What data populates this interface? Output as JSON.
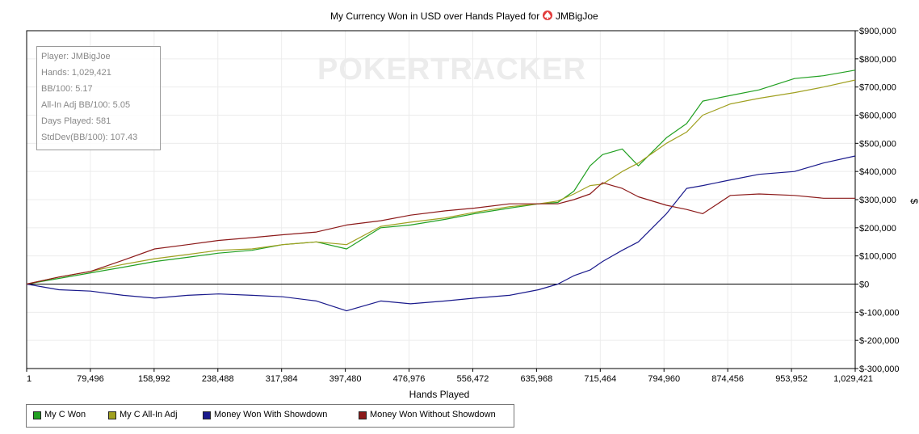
{
  "chart_data": {
    "type": "line",
    "title": "My Currency Won in USD over Hands Played for ",
    "player_name": "JMBigJoe",
    "title_icon": "spade-icon",
    "xlabel": "Hands Played",
    "ylabel": "$",
    "xlim": [
      1,
      1029421
    ],
    "ylim": [
      -300000,
      900000
    ],
    "x_ticks": [
      "1",
      "79,496",
      "158,992",
      "238,488",
      "317,984",
      "397,480",
      "476,976",
      "556,472",
      "635,968",
      "715,464",
      "794,960",
      "874,456",
      "953,952",
      "1,029,421"
    ],
    "y_ticks": [
      "$900,000",
      "$800,000",
      "$700,000",
      "$600,000",
      "$500,000",
      "$400,000",
      "$300,000",
      "$200,000",
      "$100,000",
      "$0",
      "$-100,000",
      "$-200,000",
      "$-300,000"
    ],
    "y_axis_side": "right",
    "grid": true,
    "legend_position": "bottom",
    "x": [
      1,
      40000,
      79496,
      120000,
      158992,
      200000,
      238488,
      280000,
      317984,
      360000,
      397480,
      440000,
      476976,
      520000,
      556472,
      600000,
      635968,
      660000,
      680000,
      700000,
      715464,
      740000,
      760000,
      794960,
      820000,
      840000,
      874456,
      910000,
      953952,
      990000,
      1029421
    ],
    "series": [
      {
        "name": "My C Won",
        "color": "#22a022",
        "values": [
          0,
          20000,
          40000,
          60000,
          80000,
          95000,
          110000,
          120000,
          140000,
          150000,
          125000,
          200000,
          210000,
          230000,
          250000,
          270000,
          285000,
          290000,
          330000,
          420000,
          460000,
          480000,
          420000,
          520000,
          570000,
          650000,
          670000,
          690000,
          730000,
          740000,
          760000
        ]
      },
      {
        "name": "My C All-In Adj",
        "color": "#a0a020",
        "values": [
          0,
          25000,
          45000,
          70000,
          90000,
          105000,
          120000,
          125000,
          140000,
          150000,
          140000,
          205000,
          220000,
          235000,
          255000,
          275000,
          285000,
          295000,
          320000,
          350000,
          355000,
          400000,
          430000,
          500000,
          540000,
          600000,
          640000,
          660000,
          680000,
          700000,
          725000
        ]
      },
      {
        "name": "Money Won With Showdown",
        "color": "#1a1a8c",
        "values": [
          0,
          -20000,
          -25000,
          -40000,
          -50000,
          -40000,
          -35000,
          -40000,
          -45000,
          -60000,
          -95000,
          -60000,
          -70000,
          -60000,
          -50000,
          -40000,
          -20000,
          0,
          30000,
          50000,
          80000,
          120000,
          150000,
          250000,
          340000,
          350000,
          370000,
          390000,
          400000,
          430000,
          455000
        ]
      },
      {
        "name": "Money Won Without Showdown",
        "color": "#8c1a1a",
        "values": [
          0,
          25000,
          45000,
          85000,
          125000,
          140000,
          155000,
          165000,
          175000,
          185000,
          210000,
          225000,
          245000,
          260000,
          270000,
          285000,
          285000,
          285000,
          300000,
          320000,
          360000,
          340000,
          310000,
          280000,
          265000,
          250000,
          315000,
          320000,
          315000,
          305000,
          305000
        ]
      }
    ]
  },
  "stats": {
    "player": "Player: JMBigJoe",
    "hands": "Hands: 1,029,421",
    "bb100": "BB/100: 5.17",
    "allin_bb100": "All-In Adj BB/100: 5.05",
    "days": "Days Played: 581",
    "stddev": "StdDev(BB/100): 107.43"
  },
  "watermark": "POKERTRACKER",
  "legend": [
    {
      "label": "My C Won",
      "color": "#22a022"
    },
    {
      "label": "My C All-In Adj",
      "color": "#a0a020"
    },
    {
      "label": "Money Won With Showdown",
      "color": "#1a1a8c"
    },
    {
      "label": "Money Won Without Showdown",
      "color": "#8c1a1a"
    }
  ]
}
